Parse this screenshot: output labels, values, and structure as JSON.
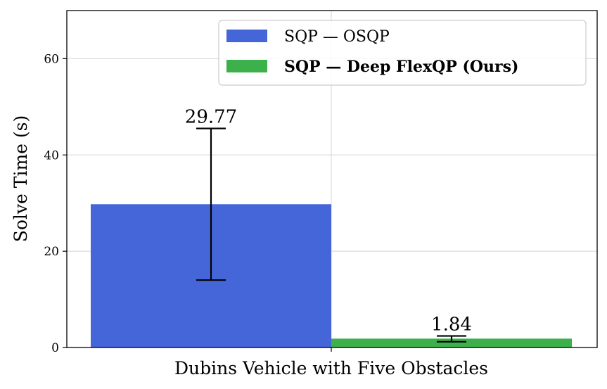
{
  "chart_data": {
    "type": "bar",
    "categories": [
      "Dubins Vehicle with Five Obstacles"
    ],
    "xlabel": "Dubins Vehicle with Five Obstacles",
    "ylabel": "Solve Time (s)",
    "ylim": [
      0,
      70
    ],
    "yticks": [
      0,
      20,
      40,
      60
    ],
    "grid": true,
    "legend_position": "top-right",
    "series": [
      {
        "name": "SQP — OSQP",
        "values": [
          29.77
        ],
        "label": "29.77",
        "error_low": [
          14.0
        ],
        "error_high": [
          45.5
        ],
        "color": "#4466d9",
        "bold": false
      },
      {
        "name": "SQP — Deep FlexQP (Ours)",
        "values": [
          1.84
        ],
        "label": "1.84",
        "error_low": [
          1.2
        ],
        "error_high": [
          2.4
        ],
        "color": "#3cb04a",
        "bold": true
      }
    ]
  }
}
